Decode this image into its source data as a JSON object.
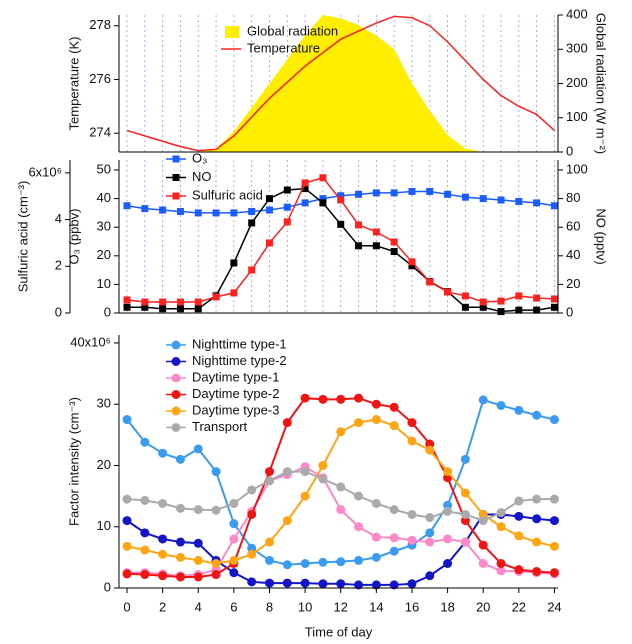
{
  "chart_data": [
    {
      "type": "line",
      "x": [
        0,
        1,
        2,
        3,
        4,
        5,
        6,
        7,
        8,
        9,
        10,
        11,
        12,
        13,
        14,
        15,
        16,
        17,
        18,
        19,
        20,
        21,
        22,
        23,
        24
      ],
      "xlim": [
        -0.45,
        24.2
      ],
      "xgrid": true,
      "ylabel": "Temperature (K)",
      "ylim": [
        273.3,
        278.4
      ],
      "yticks": [
        274,
        276,
        278
      ],
      "y2label": "Global radiation (W m⁻²)",
      "y2lim": [
        0,
        400
      ],
      "y2ticks": [
        0,
        100,
        200,
        300,
        400
      ],
      "series": [
        {
          "name": "Global radiation",
          "type": "area",
          "axis": "y2",
          "color": "#ffee00",
          "values": [
            0,
            0,
            0,
            0,
            0,
            10,
            60,
            130,
            200,
            270,
            340,
            400,
            390,
            370,
            340,
            300,
            200,
            120,
            50,
            10,
            0,
            0,
            0,
            0,
            0
          ]
        },
        {
          "name": "Temperature",
          "color": "#ff2020",
          "values": [
            274.1,
            273.9,
            273.7,
            273.5,
            273.35,
            273.4,
            273.9,
            274.6,
            275.3,
            275.9,
            276.5,
            277.0,
            277.5,
            277.8,
            278.1,
            278.35,
            278.3,
            278.0,
            277.4,
            276.7,
            276.0,
            275.4,
            275.0,
            274.7,
            274.1
          ]
        }
      ]
    },
    {
      "type": "line",
      "x": [
        0,
        1,
        2,
        3,
        4,
        5,
        6,
        7,
        8,
        9,
        10,
        11,
        12,
        13,
        14,
        15,
        16,
        17,
        18,
        19,
        20,
        21,
        22,
        23,
        24
      ],
      "xlim": [
        -0.45,
        24.2
      ],
      "xgrid": true,
      "marker": "square",
      "ylabel": "O₃ (ppbv)",
      "ylim": [
        0,
        53.5
      ],
      "yticks": [
        0,
        10,
        20,
        30,
        40,
        50
      ],
      "y2label": "NO (pptv)",
      "y2lim": [
        0,
        107
      ],
      "y2ticks": [
        0,
        20,
        40,
        60,
        80,
        100
      ],
      "y3label": "Sulfuric acid (cm⁻³)",
      "y3lim": [
        0,
        6550000
      ],
      "y3ticks": [
        0,
        {
          "value": 2000000,
          "label": "2"
        },
        {
          "value": 4000000,
          "label": "4"
        },
        {
          "value": 6000000,
          "label": "6x10⁶"
        }
      ],
      "series": [
        {
          "name": "O₃",
          "color": "#1a5cff",
          "axis": "y",
          "values": [
            37.5,
            36.5,
            36,
            35.5,
            35,
            35,
            35,
            35.5,
            36,
            37,
            38.5,
            40,
            41,
            41.5,
            42,
            42,
            42.5,
            42.5,
            41.5,
            40.5,
            40,
            39.5,
            39,
            38.5,
            37.5
          ]
        },
        {
          "name": "NO",
          "color": "#000000",
          "axis": "y2",
          "values": [
            4,
            4,
            3,
            3,
            3,
            12,
            35,
            63,
            80,
            86,
            87,
            77,
            62,
            47,
            47,
            43,
            33,
            22,
            15,
            4,
            4,
            1,
            2,
            2,
            4
          ]
        },
        {
          "name": "Sulfuric acid",
          "color": "#ff2020",
          "axis": "y3",
          "values": [
            560000,
            470000,
            470000,
            470000,
            470000,
            690000,
            860000,
            1840000,
            3000000,
            3900000,
            5570000,
            5790000,
            4840000,
            3770000,
            3470000,
            3040000,
            2190000,
            1330000,
            900000,
            730000,
            470000,
            510000,
            730000,
            640000,
            600000
          ]
        }
      ]
    },
    {
      "type": "line",
      "x": [
        0,
        1,
        2,
        3,
        4,
        5,
        6,
        7,
        8,
        9,
        10,
        11,
        12,
        13,
        14,
        15,
        16,
        17,
        18,
        19,
        20,
        21,
        22,
        23,
        24
      ],
      "xlim": [
        -0.45,
        24.2
      ],
      "xticks": [
        0,
        2,
        4,
        6,
        8,
        10,
        12,
        14,
        16,
        18,
        20,
        22,
        24
      ],
      "xlabel": "Time of day",
      "marker": "circle",
      "ylabel": "Factor intensity (cm⁻³)",
      "ylim": [
        0,
        41300000
      ],
      "yticks": [
        0,
        {
          "value": 10000000,
          "label": "10"
        },
        {
          "value": 20000000,
          "label": "20"
        },
        {
          "value": 30000000,
          "label": "30"
        },
        {
          "value": 40000000,
          "label": "40x10⁶"
        }
      ],
      "series": [
        {
          "name": "Nighttime type-1",
          "color": "#3a9bf0",
          "values": [
            27500000,
            23800000,
            22000000,
            21000000,
            22700000,
            19000000,
            10500000,
            6500000,
            4500000,
            3800000,
            4000000,
            4200000,
            4300000,
            4500000,
            5000000,
            6000000,
            7000000,
            9000000,
            13500000,
            21000000,
            30700000,
            29800000,
            29000000,
            28200000,
            27500000
          ]
        },
        {
          "name": "Nighttime type-2",
          "color": "#1414c8",
          "values": [
            11000000,
            9000000,
            8000000,
            7500000,
            7300000,
            4500000,
            2500000,
            1000000,
            800000,
            800000,
            800000,
            700000,
            700000,
            500000,
            500000,
            500000,
            700000,
            2000000,
            4000000,
            7500000,
            12000000,
            12000000,
            11700000,
            11300000,
            11000000
          ]
        },
        {
          "name": "Daytime type-1",
          "color": "#ff88c8",
          "values": [
            2500000,
            2500000,
            2300000,
            2000000,
            2200000,
            3000000,
            8000000,
            12500000,
            17500000,
            18500000,
            19800000,
            18000000,
            12800000,
            10000000,
            8300000,
            8200000,
            7800000,
            7500000,
            8000000,
            7500000,
            4000000,
            2800000,
            2700000,
            2500000,
            2300000
          ]
        },
        {
          "name": "Daytime type-2",
          "color": "#f01414",
          "values": [
            2300000,
            2200000,
            2000000,
            1800000,
            1800000,
            2200000,
            4000000,
            12000000,
            19000000,
            27000000,
            31000000,
            30800000,
            30800000,
            31000000,
            30000000,
            29500000,
            27000000,
            23500000,
            18000000,
            11000000,
            7000000,
            4000000,
            3000000,
            2700000,
            2500000
          ]
        },
        {
          "name": "Daytime type-3",
          "color": "#ffa514",
          "values": [
            6800000,
            6200000,
            5500000,
            5000000,
            4500000,
            4000000,
            4500000,
            5500000,
            7500000,
            11000000,
            15000000,
            20000000,
            25500000,
            27000000,
            27500000,
            26500000,
            24000000,
            22500000,
            19000000,
            15500000,
            12000000,
            10000000,
            8500000,
            7500000,
            6800000
          ]
        },
        {
          "name": "Transport",
          "color": "#aaaaaa",
          "values": [
            14500000,
            14300000,
            13800000,
            13000000,
            12800000,
            12700000,
            13800000,
            16000000,
            17500000,
            19000000,
            19000000,
            17800000,
            16500000,
            15000000,
            13800000,
            12800000,
            12000000,
            11500000,
            12500000,
            12000000,
            11000000,
            12300000,
            14200000,
            14500000,
            14500000
          ]
        }
      ]
    }
  ]
}
